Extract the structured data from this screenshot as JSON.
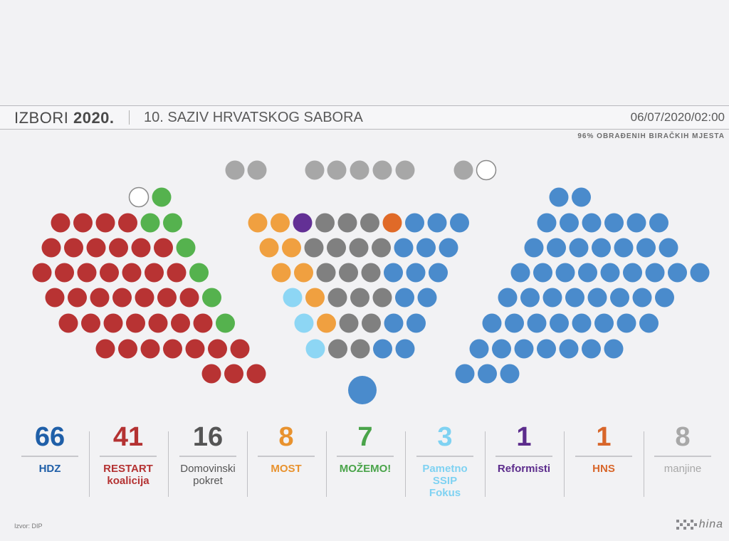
{
  "header": {
    "title_light": "IZBORI",
    "title_bold": "2020.",
    "subtitle": "10. SAZIV HRVATSKOG SABORA",
    "timestamp": "06/07/2020/02:00",
    "progress_note": "96% OBRAĐENIH BIRAČKIH MJESTA"
  },
  "footer": {
    "source": "Izvor: DIP",
    "logo_text": "hina"
  },
  "chart_data": {
    "type": "parliament",
    "total_seats": 151,
    "parties": [
      {
        "name": "HDZ",
        "seats": 66,
        "color": "#1f5fa8",
        "seat_color": "#4a8bcc"
      },
      {
        "name": "RESTART koalicija",
        "seats": 41,
        "color": "#b43232",
        "seat_color": "#b83333"
      },
      {
        "name": "Domovinski pokret",
        "seats": 16,
        "color": "#555555",
        "seat_color": "#808080"
      },
      {
        "name": "MOST",
        "seats": 8,
        "color": "#e8922e",
        "seat_color": "#f0a040"
      },
      {
        "name": "MOŽEMO!",
        "seats": 7,
        "color": "#4aa44a",
        "seat_color": "#55b24e"
      },
      {
        "name": "Pametno SSIP Fokus",
        "seats": 3,
        "color": "#7fd2f2",
        "seat_color": "#8dd6f4"
      },
      {
        "name": "Reformisti",
        "seats": 1,
        "color": "#5c2c8c",
        "seat_color": "#633095"
      },
      {
        "name": "HNS",
        "seats": 1,
        "color": "#d8662a",
        "seat_color": "#e06a28"
      },
      {
        "name": "manjine",
        "seats": 8,
        "color": "#a8a8a8",
        "seat_color": "#a7a7a7"
      }
    ]
  }
}
